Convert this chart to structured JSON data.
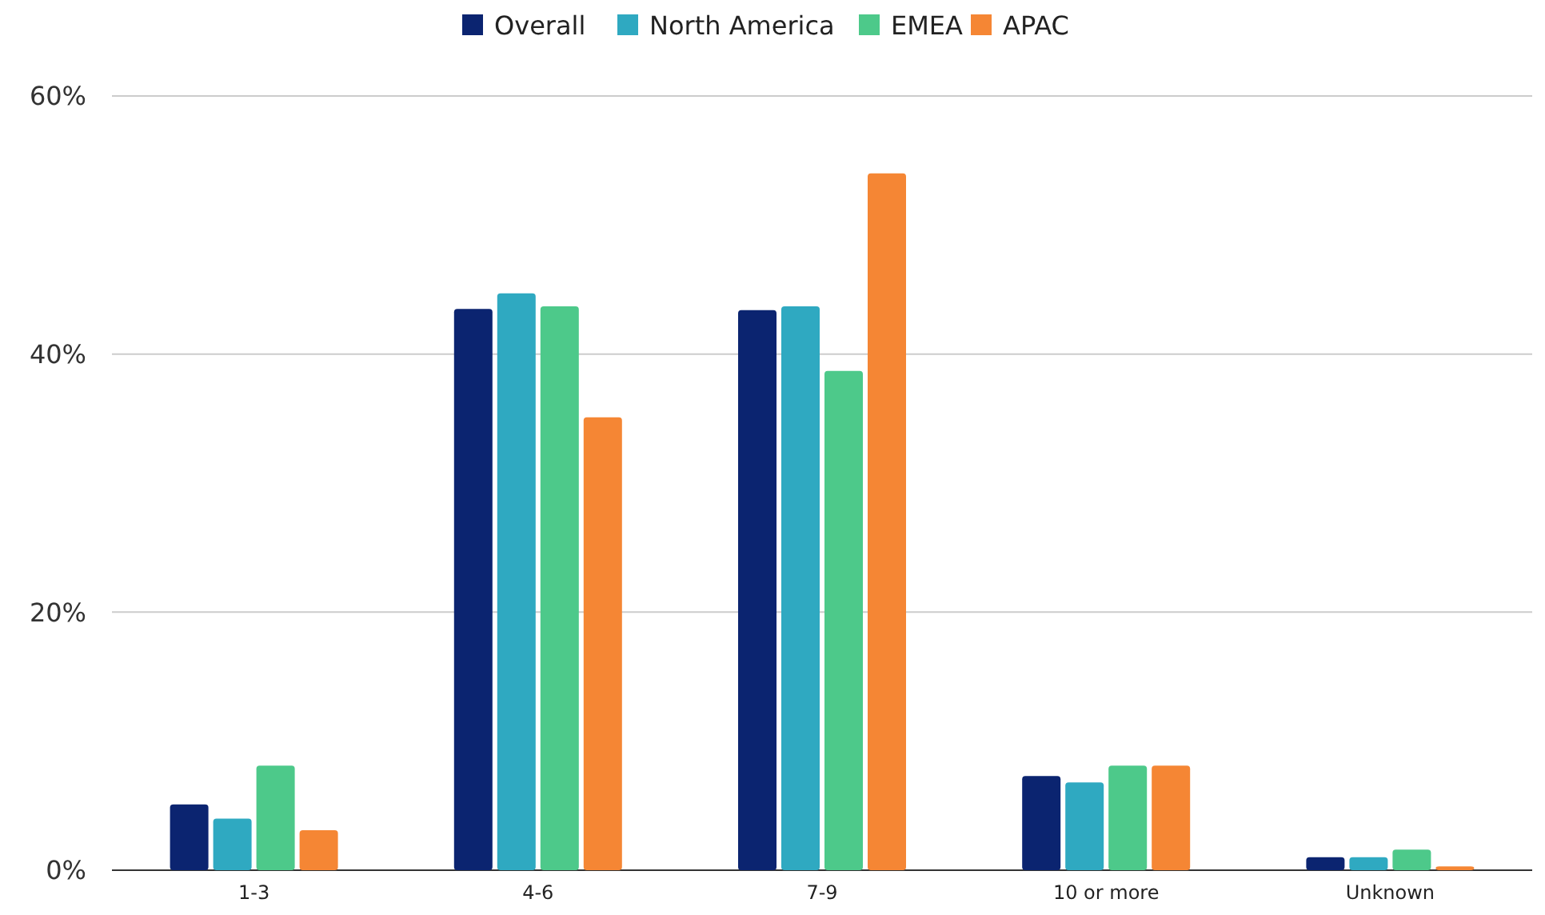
{
  "chart_data": {
    "type": "bar",
    "categories": [
      "1-3",
      "4-6",
      "7-9",
      "10 or more",
      "Unknown"
    ],
    "series": [
      {
        "name": "Overall",
        "color": "#0b2470",
        "values": [
          5.1,
          43.5,
          43.4,
          7.3,
          1.0
        ]
      },
      {
        "name": "North America",
        "color": "#2fa9c1",
        "values": [
          4.0,
          44.7,
          43.7,
          6.8,
          1.0
        ]
      },
      {
        "name": "EMEA",
        "color": "#4dc98a",
        "values": [
          8.1,
          43.7,
          38.7,
          8.1,
          1.6
        ]
      },
      {
        "name": "APAC",
        "color": "#f58634",
        "values": [
          3.1,
          35.1,
          54.0,
          8.1,
          0.3
        ]
      }
    ],
    "ylim": [
      0,
      60
    ],
    "yticks": [
      {
        "value": 0,
        "label": "0%"
      },
      {
        "value": 20,
        "label": "20%"
      },
      {
        "value": 40,
        "label": "40%"
      },
      {
        "value": 60,
        "label": "60%"
      }
    ],
    "grid": "y",
    "legend": "top"
  }
}
